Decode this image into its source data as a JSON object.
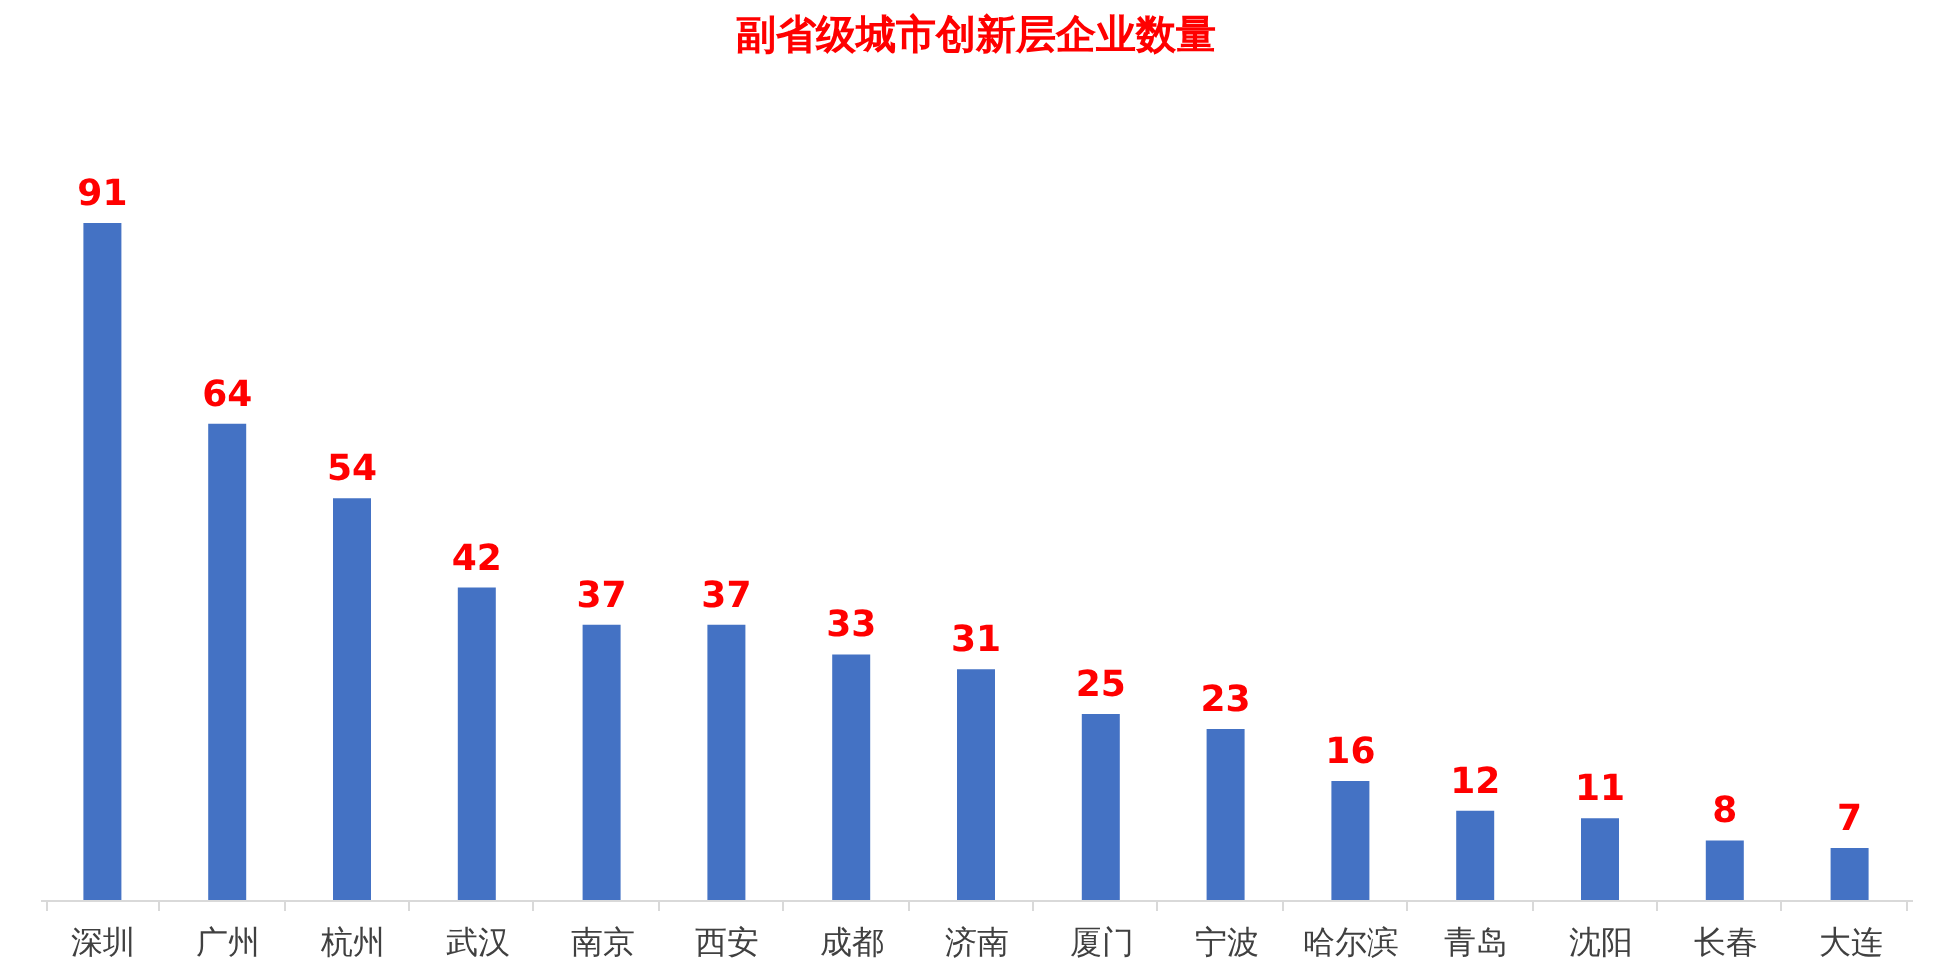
{
  "chart_data": {
    "type": "bar",
    "title": "副省级城市创新层企业数量",
    "categories": [
      "深圳",
      "广州",
      "杭州",
      "武汉",
      "南京",
      "西安",
      "成都",
      "济南",
      "厦门",
      "宁波",
      "哈尔滨",
      "青岛",
      "沈阳",
      "长春",
      "大连"
    ],
    "values": [
      91,
      64,
      54,
      42,
      37,
      37,
      33,
      31,
      25,
      23,
      16,
      12,
      11,
      8,
      7
    ],
    "color": "#4472c4",
    "data_labels": true,
    "grid": false,
    "tick_labels": "x"
  }
}
